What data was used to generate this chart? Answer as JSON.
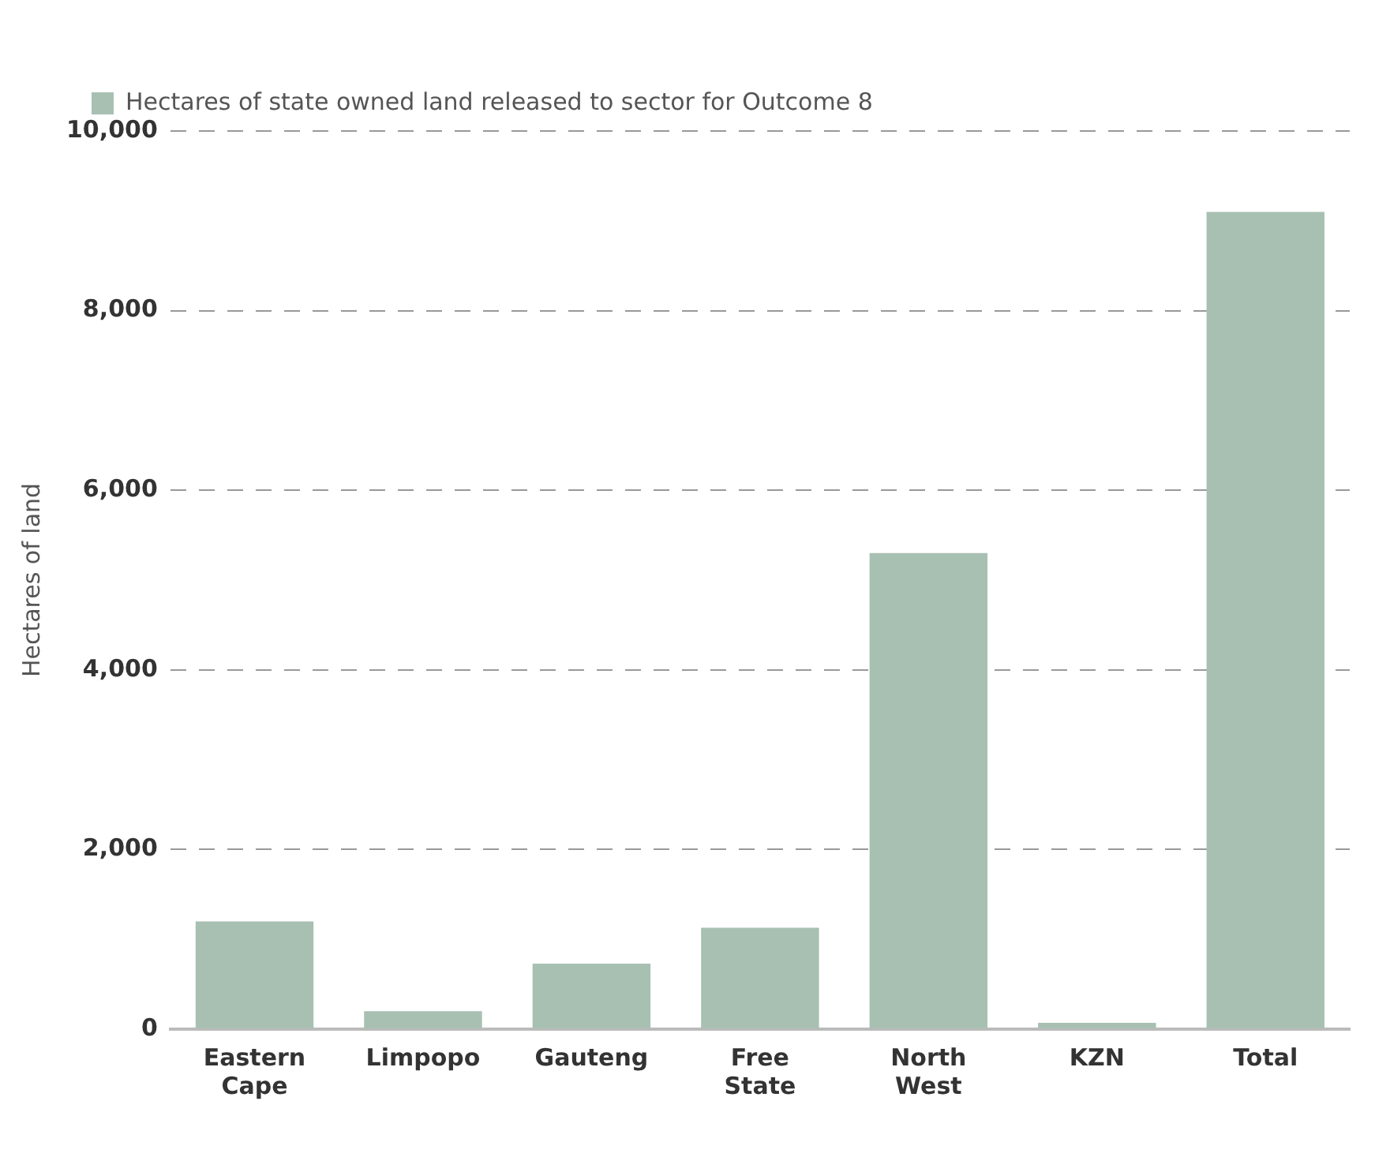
{
  "chart_data": {
    "type": "bar",
    "ylabel": "Hectares of land",
    "categories": [
      "Eastern\nCape",
      "Limpopo",
      "Gauteng",
      "Free\nState",
      "North\nWest",
      "KZN",
      "Total"
    ],
    "series": [
      {
        "name": "Hectares of state owned land released to sector for Outcome 8",
        "color": "#a8c0b2",
        "values": [
          1200,
          200,
          730,
          1130,
          5300,
          70,
          9100
        ]
      }
    ],
    "ylim": [
      0,
      10000
    ],
    "yticks": [
      {
        "value": 0,
        "label": "0"
      },
      {
        "value": 2000,
        "label": "2,000"
      },
      {
        "value": 4000,
        "label": "4,000"
      },
      {
        "value": 6000,
        "label": "6,000"
      },
      {
        "value": 8000,
        "label": "8,000"
      },
      {
        "value": 10000,
        "label": "10,000"
      }
    ],
    "grid": "y",
    "legend": "top left"
  }
}
